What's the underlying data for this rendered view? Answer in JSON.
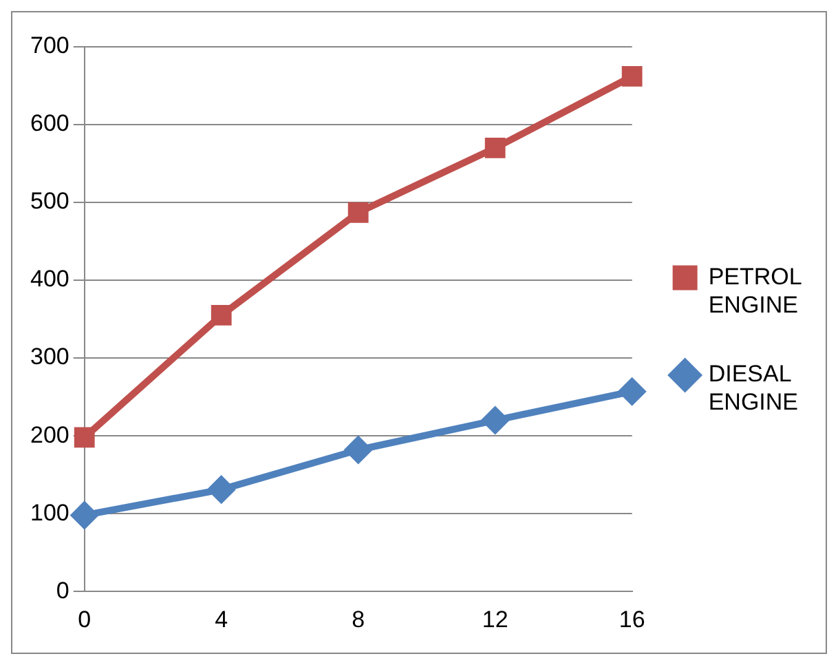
{
  "chart_data": {
    "type": "line",
    "categories": [
      "0",
      "4",
      "8",
      "12",
      "16"
    ],
    "series": [
      {
        "name": "PETROL ENGINE",
        "color": "#c0504d",
        "marker": "square",
        "values": [
          198,
          355,
          487,
          570,
          662
        ]
      },
      {
        "name": "DIESAL ENGINE",
        "color": "#4f81bd",
        "marker": "diamond",
        "values": [
          98,
          131,
          182,
          220,
          257
        ]
      }
    ],
    "ylim": [
      0,
      700
    ],
    "yticks": [
      0,
      100,
      200,
      300,
      400,
      500,
      600,
      700
    ],
    "grid": "y",
    "legend": "right",
    "line_style": "solid"
  }
}
